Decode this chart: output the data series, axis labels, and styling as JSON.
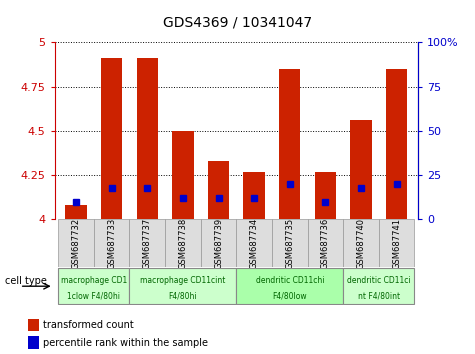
{
  "title": "GDS4369 / 10341047",
  "samples": [
    "GSM687732",
    "GSM687733",
    "GSM687737",
    "GSM687738",
    "GSM687739",
    "GSM687734",
    "GSM687735",
    "GSM687736",
    "GSM687740",
    "GSM687741"
  ],
  "red_bar_tops": [
    4.08,
    4.91,
    4.91,
    4.5,
    4.33,
    4.27,
    4.85,
    4.27,
    4.56,
    4.85
  ],
  "blue_pct": [
    10,
    18,
    18,
    12,
    12,
    12,
    20,
    10,
    18,
    20
  ],
  "ylim_left": [
    4.0,
    5.0
  ],
  "ylim_right": [
    0,
    100
  ],
  "yticks_left": [
    4.0,
    4.25,
    4.5,
    4.75,
    5.0
  ],
  "yticks_right": [
    0,
    25,
    50,
    75,
    100
  ],
  "yticklabels_left": [
    "4",
    "4.25",
    "4.5",
    "4.75",
    "5"
  ],
  "yticklabels_right": [
    "0",
    "25",
    "50",
    "75",
    "100%"
  ],
  "left_tick_color": "#cc0000",
  "right_tick_color": "#0000cc",
  "bar_color": "#cc2200",
  "blue_color": "#0000cc",
  "groups": [
    {
      "label_top": "macrophage CD1",
      "label_bot": "1clow F4/80hi",
      "start": 0,
      "end": 2,
      "bg": "#ccffcc"
    },
    {
      "label_top": "macrophage CD11cint",
      "label_bot": "F4/80hi",
      "start": 2,
      "end": 5,
      "bg": "#ccffcc"
    },
    {
      "label_top": "dendritic CD11chi",
      "label_bot": "F4/80low",
      "start": 5,
      "end": 8,
      "bg": "#aaffaa"
    },
    {
      "label_top": "dendritic CD11ci",
      "label_bot": "nt F4/80int",
      "start": 8,
      "end": 10,
      "bg": "#ccffcc"
    }
  ],
  "cell_type_label": "cell type",
  "legend_red": "transformed count",
  "legend_blue": "percentile rank within the sample",
  "bar_width": 0.6,
  "base_value": 4.0
}
